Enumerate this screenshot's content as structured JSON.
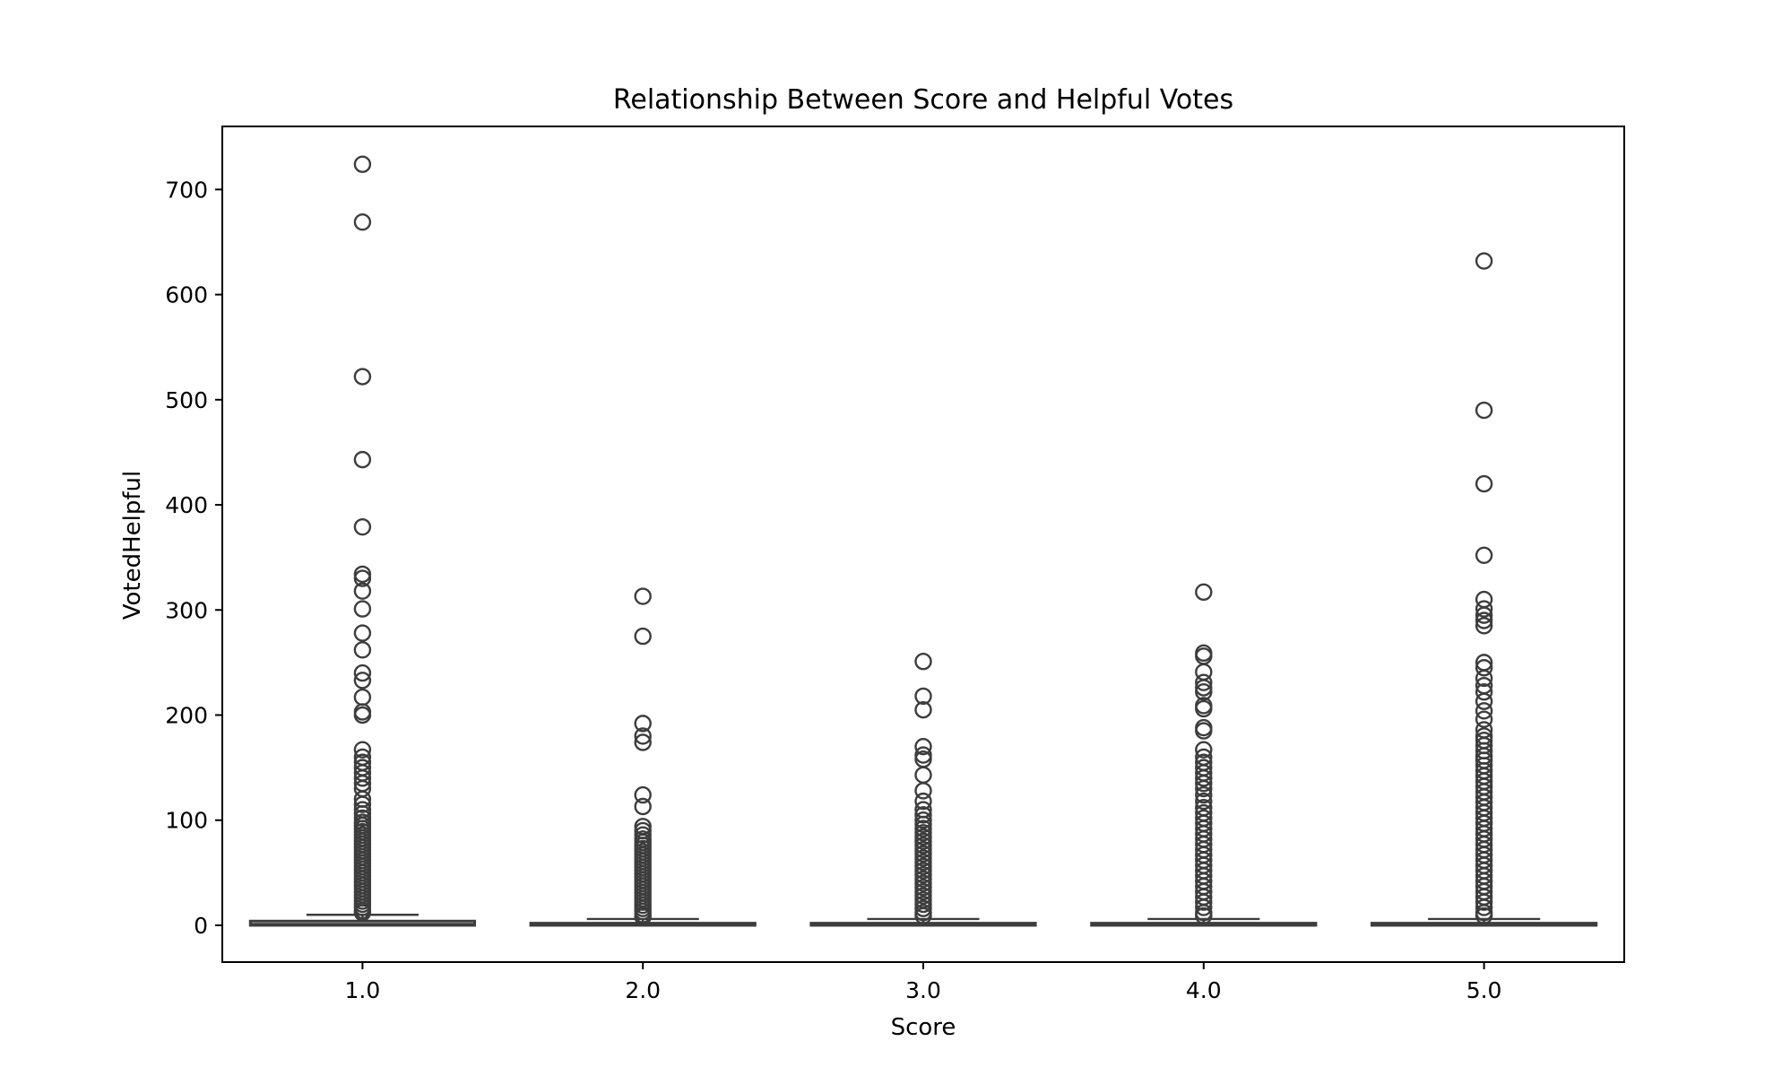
{
  "chart_data": {
    "type": "box",
    "title": "Relationship Between Score and Helpful Votes",
    "xlabel": "Score",
    "ylabel": "VotedHelpful",
    "ylim": [
      -35,
      760
    ],
    "yticks": [
      0,
      100,
      200,
      300,
      400,
      500,
      600,
      700
    ],
    "grid": false,
    "legend": "none",
    "colors": {
      "box": "#3d3d3d",
      "axis": "#000000"
    },
    "categories": [
      "1.0",
      "2.0",
      "3.0",
      "4.0",
      "5.0"
    ],
    "boxes": [
      {
        "category": "1.0",
        "min": 0,
        "q1": 0,
        "median": 1,
        "q3": 4,
        "whisker_high": 10,
        "outliers": [
          724,
          669,
          522,
          443,
          379,
          334,
          330,
          318,
          301,
          278,
          262,
          240,
          233,
          217,
          203,
          200,
          167,
          160,
          155,
          150,
          145,
          140,
          135,
          130,
          120,
          115,
          110,
          106,
          102,
          98,
          95,
          92,
          89,
          86,
          83,
          80,
          77,
          74,
          71,
          68,
          65,
          62,
          59,
          56,
          53,
          50,
          47,
          44,
          41,
          38,
          35,
          32,
          29,
          26,
          23,
          20,
          17,
          14,
          12
        ]
      },
      {
        "category": "2.0",
        "min": 0,
        "q1": 0,
        "median": 1,
        "q3": 2,
        "whisker_high": 6,
        "outliers": [
          313,
          275,
          192,
          180,
          174,
          124,
          113,
          94,
          90,
          86,
          82,
          79,
          76,
          73,
          70,
          67,
          64,
          61,
          58,
          55,
          52,
          49,
          46,
          43,
          40,
          37,
          34,
          31,
          28,
          25,
          22,
          19,
          16,
          13,
          10,
          8
        ]
      },
      {
        "category": "3.0",
        "min": 0,
        "q1": 0,
        "median": 1,
        "q3": 2,
        "whisker_high": 6,
        "outliers": [
          251,
          218,
          205,
          170,
          162,
          158,
          143,
          128,
          118,
          110,
          105,
          100,
          96,
          92,
          88,
          84,
          80,
          76,
          72,
          68,
          64,
          60,
          56,
          52,
          48,
          44,
          40,
          36,
          32,
          28,
          24,
          20,
          16,
          12,
          9
        ]
      },
      {
        "category": "4.0",
        "min": 0,
        "q1": 0,
        "median": 1,
        "q3": 2,
        "whisker_high": 6,
        "outliers": [
          317,
          259,
          256,
          241,
          231,
          226,
          222,
          209,
          206,
          188,
          185,
          167,
          160,
          155,
          150,
          145,
          140,
          135,
          130,
          124,
          118,
          112,
          107,
          102,
          97,
          92,
          87,
          82,
          77,
          72,
          67,
          62,
          57,
          52,
          47,
          42,
          37,
          32,
          27,
          22,
          17,
          12,
          9
        ]
      },
      {
        "category": "5.0",
        "min": 0,
        "q1": 0,
        "median": 1,
        "q3": 2,
        "whisker_high": 6,
        "outliers": [
          632,
          490,
          420,
          352,
          310,
          301,
          295,
          290,
          285,
          250,
          245,
          235,
          228,
          222,
          213,
          204,
          196,
          186,
          180,
          176,
          171,
          166,
          161,
          157,
          152,
          147,
          142,
          137,
          132,
          127,
          122,
          117,
          112,
          107,
          102,
          97,
          92,
          87,
          82,
          77,
          72,
          67,
          62,
          57,
          52,
          47,
          42,
          37,
          32,
          27,
          22,
          17,
          12,
          9
        ]
      }
    ]
  }
}
